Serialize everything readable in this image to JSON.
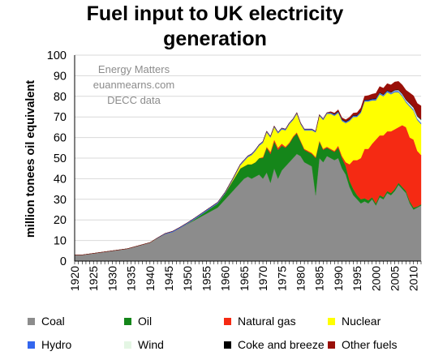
{
  "chart_data": {
    "type": "area",
    "stacked": true,
    "title_lines": [
      "Fuel input to UK electricity",
      "generation"
    ],
    "ylabel": "million tonees oil equivalent",
    "ylim": [
      0,
      100
    ],
    "y_ticks": [
      "0",
      "10",
      "20",
      "30",
      "40",
      "50",
      "60",
      "70",
      "80",
      "90",
      "100"
    ],
    "xlim": [
      1920,
      2012
    ],
    "x_ticks": [
      "1920",
      "1925",
      "1930",
      "1935",
      "1940",
      "1945",
      "1950",
      "1955",
      "1960",
      "1965",
      "1970",
      "1975",
      "1980",
      "1985",
      "1990",
      "1995",
      "2000",
      "2005",
      "2010"
    ],
    "annotation_lines": [
      "Energy Matters",
      "euanmearns.com",
      "DECC data"
    ],
    "legend_position": "bottom",
    "x": [
      1920,
      1922,
      1924,
      1926,
      1928,
      1930,
      1932,
      1934,
      1936,
      1938,
      1940,
      1942,
      1944,
      1946,
      1948,
      1950,
      1952,
      1954,
      1956,
      1958,
      1960,
      1961,
      1962,
      1963,
      1964,
      1965,
      1966,
      1967,
      1968,
      1969,
      1970,
      1971,
      1972,
      1973,
      1974,
      1975,
      1976,
      1977,
      1978,
      1979,
      1980,
      1981,
      1982,
      1983,
      1984,
      1985,
      1986,
      1987,
      1988,
      1989,
      1990,
      1991,
      1992,
      1993,
      1994,
      1995,
      1996,
      1997,
      1998,
      1999,
      2000,
      2001,
      2002,
      2003,
      2004,
      2005,
      2006,
      2007,
      2008,
      2009,
      2010,
      2011,
      2012
    ],
    "series": [
      {
        "name": "Coal",
        "color": "#8c8c8c",
        "values": [
          3,
          3,
          3.5,
          4,
          4.5,
          5,
          5.5,
          6,
          7,
          8,
          9,
          11,
          13,
          14,
          16,
          18,
          20,
          22,
          24,
          26,
          30,
          32,
          34,
          36,
          38,
          40,
          41,
          40,
          41,
          42,
          40,
          43,
          38,
          45,
          40,
          44,
          46,
          48,
          50,
          52,
          51,
          48,
          47,
          46,
          32,
          50,
          48,
          51,
          50,
          49,
          50,
          45,
          42,
          36,
          32,
          30,
          28,
          29,
          28,
          30,
          27,
          31,
          30,
          33,
          32,
          34,
          37,
          35,
          33,
          28,
          25,
          26,
          27
        ]
      },
      {
        "name": "Oil",
        "color": "#15861a",
        "values": [
          0,
          0,
          0,
          0,
          0,
          0,
          0,
          0,
          0,
          0,
          0,
          0,
          0,
          0,
          0,
          0.2,
          0.5,
          1,
          1.5,
          2,
          3,
          4,
          5,
          6,
          7,
          6,
          6,
          7,
          7,
          8,
          10,
          12,
          14,
          13,
          14,
          12,
          9,
          9,
          10,
          10,
          7,
          6,
          6,
          6,
          18,
          8,
          6,
          4,
          4,
          4,
          5,
          5,
          4,
          3,
          3,
          2,
          2,
          1.5,
          1.5,
          1,
          1,
          1,
          1,
          1,
          1,
          1,
          1,
          1,
          1,
          1,
          1,
          0.5,
          0.5
        ]
      },
      {
        "name": "Natural gas",
        "color": "#f52a13",
        "values": [
          0,
          0,
          0,
          0,
          0,
          0,
          0,
          0,
          0,
          0,
          0,
          0,
          0,
          0,
          0,
          0,
          0,
          0,
          0,
          0,
          0,
          0,
          0,
          0,
          0,
          0,
          0,
          0,
          0,
          0,
          0.5,
          0.5,
          1,
          1,
          1,
          1,
          0.5,
          0.5,
          0.5,
          0.5,
          0.5,
          0.5,
          0.5,
          0.5,
          0.5,
          0.5,
          0.5,
          0.5,
          0.5,
          0.5,
          1,
          1,
          2,
          8,
          14,
          17,
          20,
          24,
          25,
          26,
          31,
          29,
          30,
          29,
          30,
          29,
          27,
          30,
          31,
          31,
          33,
          27,
          24
        ]
      },
      {
        "name": "Nuclear",
        "color": "#ffff00",
        "values": [
          0,
          0,
          0,
          0,
          0,
          0,
          0,
          0,
          0,
          0,
          0,
          0,
          0,
          0,
          0,
          0,
          0,
          0,
          0,
          0,
          0,
          0.3,
          0.5,
          1,
          1.5,
          2.5,
          3.5,
          4.5,
          5.5,
          6,
          7,
          7,
          7,
          6,
          7,
          7,
          8,
          9,
          8,
          9,
          8,
          9,
          10,
          11,
          12,
          12,
          14,
          16,
          17,
          17,
          16,
          17,
          19,
          21,
          21,
          21,
          22,
          23,
          23,
          21,
          19,
          20,
          19,
          19,
          18,
          18,
          17,
          14,
          12,
          15,
          14,
          15,
          15
        ]
      },
      {
        "name": "Hydro",
        "color": "#3366ee",
        "values": [
          0,
          0,
          0,
          0,
          0,
          0,
          0,
          0,
          0,
          0,
          0,
          0.3,
          0.4,
          0.5,
          0.5,
          0.5,
          0.6,
          0.6,
          0.6,
          0.6,
          0.6,
          0.6,
          0.6,
          0.6,
          0.6,
          0.6,
          0.6,
          0.6,
          0.6,
          0.6,
          0.6,
          0.6,
          0.6,
          0.6,
          0.6,
          0.6,
          0.6,
          0.6,
          0.6,
          0.6,
          0.6,
          0.6,
          0.6,
          0.6,
          0.6,
          0.6,
          0.6,
          0.6,
          0.6,
          0.6,
          0.6,
          0.6,
          0.6,
          0.6,
          0.6,
          0.6,
          0.6,
          0.6,
          0.6,
          0.6,
          0.6,
          0.6,
          0.6,
          0.6,
          0.6,
          0.6,
          0.6,
          0.6,
          0.6,
          0.6,
          0.6,
          0.6,
          0.6
        ]
      },
      {
        "name": "Wind",
        "color": "#e4f6e4",
        "values": [
          0,
          0,
          0,
          0,
          0,
          0,
          0,
          0,
          0,
          0,
          0,
          0,
          0,
          0,
          0,
          0,
          0,
          0,
          0,
          0,
          0,
          0,
          0,
          0,
          0,
          0,
          0,
          0,
          0,
          0,
          0,
          0,
          0,
          0,
          0,
          0,
          0,
          0,
          0,
          0,
          0,
          0,
          0,
          0,
          0,
          0,
          0,
          0,
          0,
          0,
          0,
          0,
          0,
          0,
          0,
          0,
          0,
          0,
          0,
          0,
          0.1,
          0.1,
          0.1,
          0.1,
          0.2,
          0.3,
          0.4,
          0.5,
          0.6,
          0.8,
          0.9,
          1.2,
          1.5
        ]
      },
      {
        "name": "Coke and breeze",
        "color": "#000000",
        "values": [
          0,
          0,
          0,
          0,
          0,
          0,
          0,
          0,
          0,
          0,
          0,
          0,
          0,
          0,
          0,
          0,
          0,
          0,
          0,
          0,
          0,
          0,
          0,
          0,
          0,
          0,
          0,
          0,
          0,
          0,
          0,
          0,
          0,
          0,
          0,
          0,
          0,
          0,
          0,
          0,
          0,
          0,
          0,
          0,
          0,
          0,
          0,
          0,
          0,
          0.3,
          0.3,
          0.3,
          0.3,
          0.3,
          0.3,
          0.3,
          0.3,
          0.3,
          0.3,
          0.3,
          0.3,
          0.3,
          0.3,
          0.3,
          0.3,
          0.3,
          0.3,
          0.3,
          0.3,
          0.3,
          0.3,
          0.3,
          0.3
        ]
      },
      {
        "name": "Other fuels",
        "color": "#990f08",
        "values": [
          0,
          0,
          0,
          0,
          0,
          0,
          0,
          0,
          0,
          0,
          0,
          0,
          0,
          0,
          0,
          0,
          0,
          0,
          0,
          0,
          0,
          0,
          0,
          0,
          0,
          0,
          0,
          0,
          0,
          0,
          0,
          0,
          0,
          0,
          0,
          0,
          0,
          0,
          0,
          0,
          0,
          0,
          0,
          0,
          0,
          0,
          0,
          0,
          0.5,
          0.5,
          0.6,
          0.7,
          0.8,
          1,
          1,
          1.2,
          1.5,
          1.7,
          2,
          2.2,
          2.5,
          2.8,
          3,
          3.2,
          3.5,
          3.8,
          4,
          4.2,
          4.5,
          5,
          5.5,
          6,
          6.5
        ]
      }
    ]
  }
}
